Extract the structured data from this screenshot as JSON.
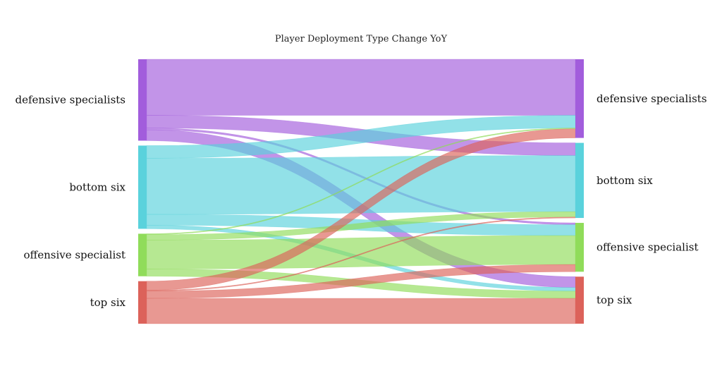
{
  "chart_data": {
    "type": "sankey",
    "title": "Player Deployment Type Change YoY",
    "nodes": [
      {
        "id": "src_defensive",
        "label": "defensive specialists",
        "side": "left",
        "color": "#a25ddc"
      },
      {
        "id": "src_bottom",
        "label": "bottom six",
        "side": "left",
        "color": "#5ad2dc"
      },
      {
        "id": "src_offensive",
        "label": "offensive specialist",
        "side": "left",
        "color": "#90dc5a"
      },
      {
        "id": "src_top",
        "label": "top six",
        "side": "left",
        "color": "#dc625a"
      },
      {
        "id": "dst_defensive",
        "label": "defensive specialists",
        "side": "right",
        "color": "#a25ddc"
      },
      {
        "id": "dst_bottom",
        "label": "bottom six",
        "side": "right",
        "color": "#5ad2dc"
      },
      {
        "id": "dst_offensive",
        "label": "offensive specialist",
        "side": "right",
        "color": "#90dc5a"
      },
      {
        "id": "dst_top",
        "label": "top six",
        "side": "right",
        "color": "#dc625a"
      }
    ],
    "links": [
      {
        "source": "src_defensive",
        "target": "dst_defensive",
        "value": 31
      },
      {
        "source": "src_defensive",
        "target": "dst_bottom",
        "value": 7
      },
      {
        "source": "src_defensive",
        "target": "dst_offensive",
        "value": 1
      },
      {
        "source": "src_defensive",
        "target": "dst_top",
        "value": 6
      },
      {
        "source": "src_bottom",
        "target": "dst_defensive",
        "value": 7
      },
      {
        "source": "src_bottom",
        "target": "dst_bottom",
        "value": 31
      },
      {
        "source": "src_bottom",
        "target": "dst_offensive",
        "value": 6
      },
      {
        "source": "src_bottom",
        "target": "dst_top",
        "value": 2
      },
      {
        "source": "src_offensive",
        "target": "dst_defensive",
        "value": 0.5
      },
      {
        "source": "src_offensive",
        "target": "dst_bottom",
        "value": 3
      },
      {
        "source": "src_offensive",
        "target": "dst_offensive",
        "value": 16
      },
      {
        "source": "src_offensive",
        "target": "dst_top",
        "value": 4
      },
      {
        "source": "src_top",
        "target": "dst_defensive",
        "value": 5
      },
      {
        "source": "src_top",
        "target": "dst_bottom",
        "value": 0.5
      },
      {
        "source": "src_top",
        "target": "dst_offensive",
        "value": 4
      },
      {
        "source": "src_top",
        "target": "dst_top",
        "value": 14
      }
    ]
  }
}
